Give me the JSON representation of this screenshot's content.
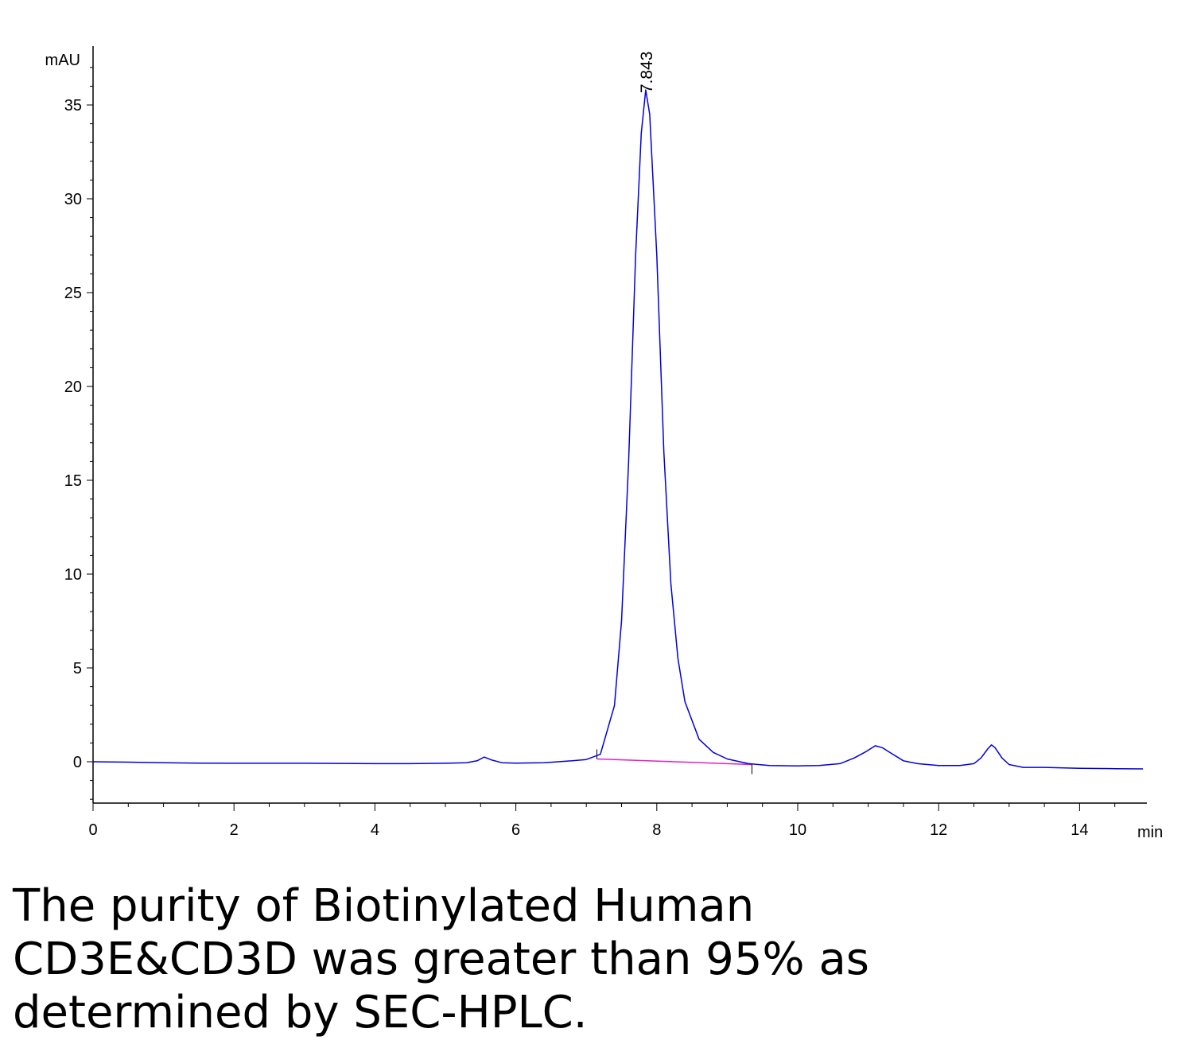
{
  "chart_data": {
    "type": "line",
    "xlabel": "min",
    "ylabel": "mAU",
    "xlim": [
      0,
      14.95
    ],
    "ylim": [
      -2.2,
      38
    ],
    "x_ticks": [
      0,
      2,
      4,
      6,
      8,
      10,
      12,
      14
    ],
    "y_ticks": [
      0,
      5,
      10,
      15,
      20,
      25,
      30,
      35
    ],
    "grid": false,
    "series": [
      {
        "color": "#0000e0",
        "x": [
          0,
          0.5,
          1,
          1.5,
          2,
          2.5,
          3,
          3.5,
          4,
          4.5,
          5,
          5.3,
          5.45,
          5.55,
          5.65,
          5.8,
          6,
          6.4,
          6.8,
          7.0,
          7.2,
          7.4,
          7.5,
          7.6,
          7.7,
          7.78,
          7.843,
          7.9,
          8.0,
          8.1,
          8.2,
          8.3,
          8.4,
          8.6,
          8.8,
          9.0,
          9.3,
          9.6,
          10.0,
          10.3,
          10.6,
          10.8,
          10.95,
          11.1,
          11.2,
          11.35,
          11.5,
          11.7,
          12.0,
          12.3,
          12.5,
          12.6,
          12.7,
          12.75,
          12.8,
          12.9,
          13.0,
          13.2,
          13.5,
          14.0,
          14.5,
          14.9
        ],
        "y": [
          0.0,
          -0.02,
          -0.05,
          -0.07,
          -0.08,
          -0.08,
          -0.08,
          -0.09,
          -0.1,
          -0.1,
          -0.08,
          -0.05,
          0.05,
          0.25,
          0.1,
          -0.05,
          -0.07,
          -0.05,
          0.05,
          0.12,
          0.4,
          3.0,
          7.5,
          16.0,
          27.0,
          33.5,
          35.8,
          34.5,
          27.0,
          16.5,
          9.5,
          5.5,
          3.2,
          1.2,
          0.5,
          0.15,
          -0.1,
          -0.2,
          -0.22,
          -0.2,
          -0.1,
          0.2,
          0.5,
          0.85,
          0.75,
          0.4,
          0.05,
          -0.1,
          -0.2,
          -0.2,
          -0.1,
          0.2,
          0.7,
          0.9,
          0.75,
          0.2,
          -0.15,
          -0.3,
          -0.3,
          -0.35,
          -0.37,
          -0.38
        ]
      }
    ],
    "baseline": {
      "color": "#e020c8",
      "x": [
        7.15,
        9.35
      ],
      "y": [
        0.15,
        -0.15
      ]
    },
    "annotations": [
      {
        "text": "7.843",
        "x": 7.843,
        "y": 35.8
      }
    ],
    "event_marks": [
      7.15,
      9.35
    ]
  },
  "caption": {
    "line1": "The purity of Biotinylated Human",
    "line2": "CD3E&CD3D was greater than 95% as",
    "line3": "determined by SEC-HPLC."
  }
}
